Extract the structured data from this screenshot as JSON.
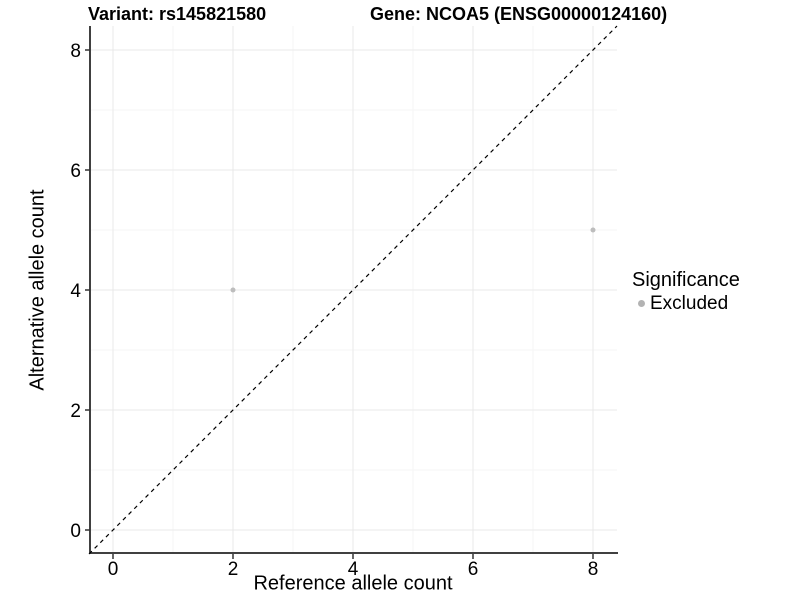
{
  "chart_data": {
    "type": "scatter",
    "title_left": "Variant: rs145821580",
    "title_right": "Gene: NCOA5 (ENSG00000124160)",
    "xlabel": "Reference allele count",
    "ylabel": "Alternative allele count",
    "xlim": [
      -0.4,
      8.4
    ],
    "ylim": [
      -0.4,
      8.4
    ],
    "x_ticks": [
      0,
      2,
      4,
      6,
      8
    ],
    "y_ticks": [
      0,
      2,
      4,
      6,
      8
    ],
    "x_minor_ticks": [
      1,
      3,
      5,
      7
    ],
    "y_minor_ticks": [
      1,
      3,
      5,
      7
    ],
    "grid": "major+minor",
    "legend_position": "right",
    "identity_line": {
      "style": "dashed",
      "slope": 1,
      "intercept": 0
    },
    "series": [
      {
        "name": "Excluded",
        "color": "#bdbdbd",
        "points": [
          {
            "x": 2,
            "y": 4
          },
          {
            "x": 8,
            "y": 5
          }
        ]
      }
    ],
    "legend": {
      "title": "Significance",
      "items": [
        {
          "label": "Excluded",
          "color": "#b3b3b3"
        }
      ]
    },
    "colors": {
      "background": "#ffffff",
      "grid_major": "#e9e9e9",
      "grid_minor": "#f5f5f5",
      "axis_line": "#404040",
      "tick_mark": "#333333",
      "text": "#000000",
      "identity_line": "#000000"
    }
  }
}
